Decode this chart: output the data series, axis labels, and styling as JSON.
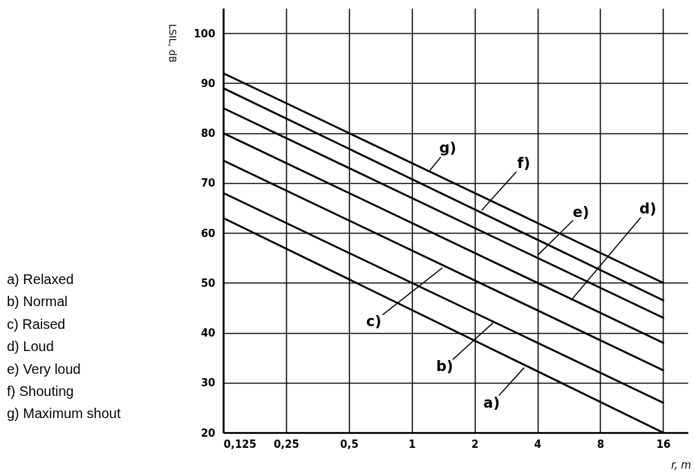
{
  "chart_data": {
    "type": "line",
    "xlabel": "r, m",
    "ylabel": "LSIL, dB",
    "log": "x",
    "grid": true,
    "marker": "none",
    "line_style": "solid",
    "x": [
      0.125,
      16
    ],
    "xlim": [
      0.125,
      21
    ],
    "ylim": [
      20,
      105
    ],
    "xticks": [
      {
        "value": 0.125,
        "label": "0,125"
      },
      {
        "value": 0.25,
        "label": "0,25"
      },
      {
        "value": 0.5,
        "label": "0,5"
      },
      1,
      2,
      4,
      8,
      16
    ],
    "yticks": [
      20,
      30,
      40,
      50,
      60,
      70,
      80,
      90,
      100
    ],
    "series": [
      {
        "color": "#000000",
        "values": [
          63,
          20
        ]
      },
      {
        "color": "#000000",
        "values": [
          68,
          26
        ]
      },
      {
        "color": "#000000",
        "values": [
          74.5,
          32.5
        ]
      },
      {
        "color": "#000000",
        "values": [
          80,
          38
        ]
      },
      {
        "color": "#000000",
        "values": [
          85,
          43
        ]
      },
      {
        "color": "#000000",
        "values": [
          89,
          46.5
        ]
      },
      {
        "color": "#000000",
        "values": [
          92,
          50
        ]
      }
    ],
    "annotations": [
      {
        "text": "a)",
        "x": 3.45,
        "y": 33
      },
      {
        "text": "b)",
        "x": 2.45,
        "y": 42
      },
      {
        "text": "c)",
        "x": 1.4,
        "y": 53
      },
      {
        "text": "d)",
        "x": 5.8,
        "y": 46.5
      },
      {
        "text": "e)",
        "x": 4,
        "y": 55.5
      },
      {
        "text": "f)",
        "x": 2.16,
        "y": 64.5
      },
      {
        "text": "g)",
        "x": 1.22,
        "y": 72.5
      },
      "a) Relaxed",
      "b) Normal",
      "c) Raised",
      "d) Loud",
      "e) Very loud",
      "f) Shouting",
      "g) Maximum shout"
    ]
  }
}
